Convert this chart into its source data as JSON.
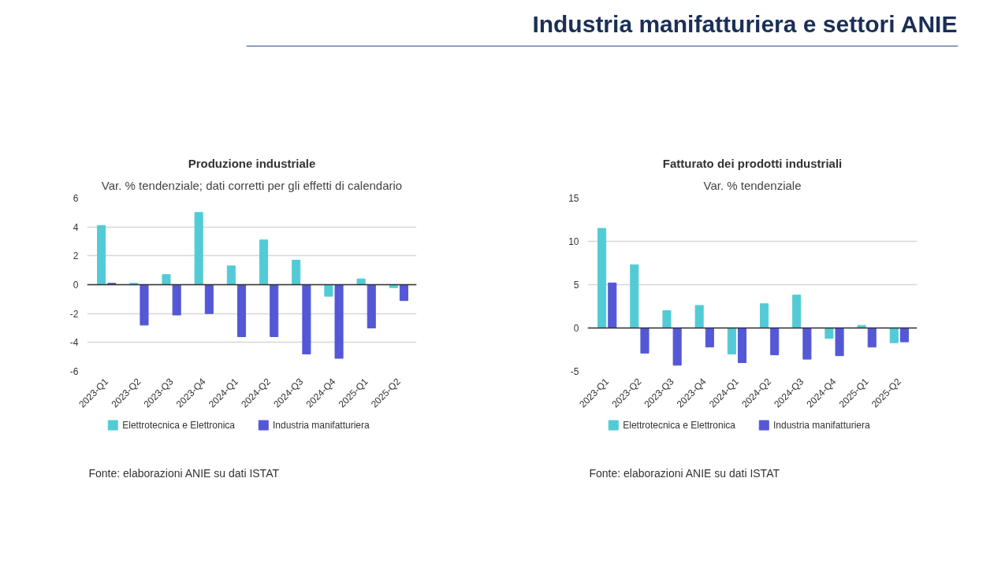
{
  "chart_data": [
    {
      "type": "other",
      "title": "Industria manifatturiera e settori ANIE"
    },
    {
      "type": "bar",
      "title": "Produzione industriale",
      "subtitle": "Var. % tendenziale; dati corretti per gli effetti di calendario",
      "categories": [
        "2023-Q1",
        "2023-Q2",
        "2023-Q3",
        "2023-Q4",
        "2024-Q1",
        "2024-Q2",
        "2024-Q3",
        "2024-Q4",
        "2025-Q1",
        "2025-Q2"
      ],
      "series": [
        {
          "name": "Elettrotecnica e Elettronica",
          "color": "#53cbd6",
          "values": [
            4.1,
            0.1,
            0.7,
            5.0,
            1.3,
            3.1,
            1.7,
            -0.8,
            0.4,
            -0.2
          ]
        },
        {
          "name": "Industria manifatturiera",
          "color": "#5458d6",
          "values": [
            0.1,
            -2.8,
            -2.1,
            -2.0,
            -3.6,
            -3.6,
            -4.8,
            -5.1,
            -3.0,
            -1.1
          ]
        }
      ],
      "ylim": [
        -6,
        6
      ],
      "yticks": [
        -6,
        -4,
        -2,
        0,
        2,
        4,
        6
      ],
      "grid": "y",
      "legend": "bottom",
      "annotations": [
        "Fonte: elaborazioni ANIE su dati ISTAT"
      ]
    },
    {
      "type": "bar",
      "title": "Fatturato dei prodotti industriali",
      "subtitle": "Var. % tendenziale",
      "categories": [
        "2023-Q1",
        "2023-Q2",
        "2023-Q3",
        "2023-Q4",
        "2024-Q1",
        "2024-Q2",
        "2024-Q3",
        "2024-Q4",
        "2025-Q1",
        "2025-Q2"
      ],
      "series": [
        {
          "name": "Elettrotecnica e Elettronica",
          "color": "#53cbd6",
          "values": [
            11.5,
            7.3,
            2.0,
            2.6,
            -3.0,
            2.8,
            3.8,
            -1.2,
            0.3,
            -1.7
          ]
        },
        {
          "name": "Industria manifatturiera",
          "color": "#5458d6",
          "values": [
            5.2,
            -2.9,
            -4.3,
            -2.2,
            -4.0,
            -3.1,
            -3.6,
            -3.2,
            -2.2,
            -1.6
          ]
        }
      ],
      "ylim": [
        -5,
        15
      ],
      "yticks": [
        -5,
        0,
        5,
        10,
        15
      ],
      "grid": "y",
      "legend": "bottom",
      "annotations": [
        "Fonte: elaborazioni ANIE su dati ISTAT"
      ]
    }
  ]
}
